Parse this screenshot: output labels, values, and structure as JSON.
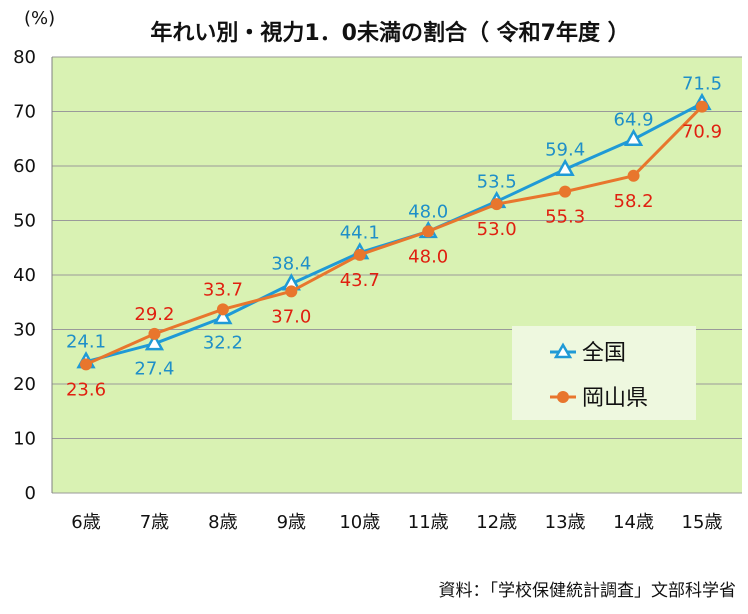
{
  "chart_data": {
    "type": "line",
    "title": "年れい別・視力1．0未満の割合（ 令和7年度 ）",
    "unit_label": "(%)",
    "categories": [
      "6歳",
      "7歳",
      "8歳",
      "9歳",
      "10歳",
      "11歳",
      "12歳",
      "13歳",
      "14歳",
      "15歳"
    ],
    "ylim": [
      0,
      80
    ],
    "yticks": [
      0,
      10,
      20,
      30,
      40,
      50,
      60,
      70,
      80
    ],
    "grid": true,
    "series": [
      {
        "name": "全国",
        "values": [
          24.1,
          27.4,
          32.2,
          38.4,
          44.1,
          48.0,
          53.5,
          59.4,
          64.9,
          71.5
        ],
        "labels": [
          "24.1",
          "27.4",
          "32.2",
          "38.4",
          "44.1",
          "48.0",
          "53.5",
          "59.4",
          "64.9",
          "71.5"
        ],
        "label_side": [
          "above",
          "below",
          "below",
          "above",
          "above",
          "above",
          "above",
          "above",
          "above",
          "above"
        ],
        "color": "#1f9ad6",
        "label_color": "#1f8fc8",
        "marker": "triangle-open"
      },
      {
        "name": "岡山県",
        "values": [
          23.6,
          29.2,
          33.7,
          37.0,
          43.7,
          48.0,
          53.0,
          55.3,
          58.2,
          70.9
        ],
        "labels": [
          "23.6",
          "29.2",
          "33.7",
          "37.0",
          "43.7",
          "48.0",
          "53.0",
          "55.3",
          "58.2",
          "70.9"
        ],
        "label_side": [
          "below",
          "above",
          "above",
          "below",
          "below",
          "below",
          "below",
          "below",
          "below",
          "below"
        ],
        "color": "#e8762d",
        "label_color": "#e02010",
        "marker": "circle-filled"
      }
    ],
    "legend_position": "bottom-right",
    "plot_background": "#d9f2b3",
    "grid_color": "#9a9a9a",
    "source": "資料：「学校保健統計調査」文部科学省"
  }
}
